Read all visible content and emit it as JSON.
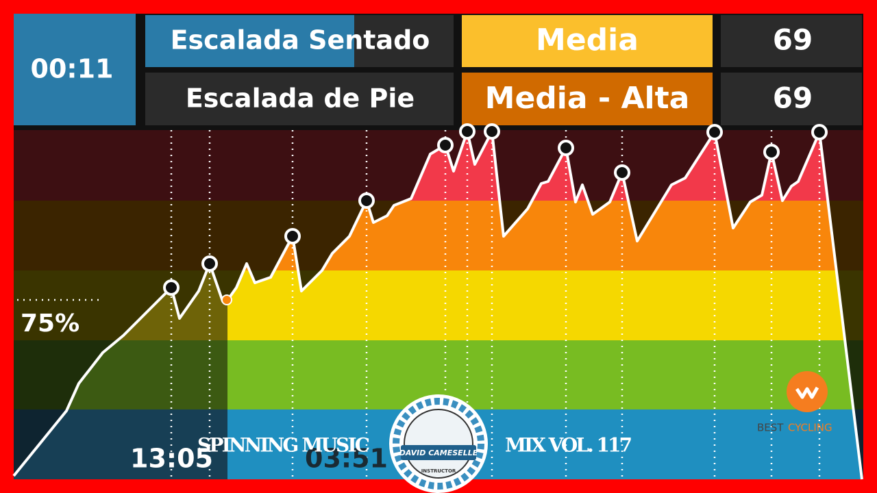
{
  "header": {
    "timer": "00:11",
    "rows": [
      {
        "name": "Escalada Sentado",
        "intensity": "Media",
        "value": 69
      },
      {
        "name": "Escalada de Pie",
        "intensity": "Media - Alta",
        "value": 69
      }
    ]
  },
  "chart": {
    "zone_label": "75%"
  },
  "footer": {
    "elapsed": "13:05",
    "remaining": "03:51",
    "title_left": "SPINNING MUSIC",
    "title_right": "MIX VOL. 117"
  },
  "logo": {
    "name": "DAVID CAMESELLE",
    "role": "INSTRUCTOR"
  },
  "brand": {
    "prefix": "BEST",
    "suffix": "CYCLING"
  }
}
